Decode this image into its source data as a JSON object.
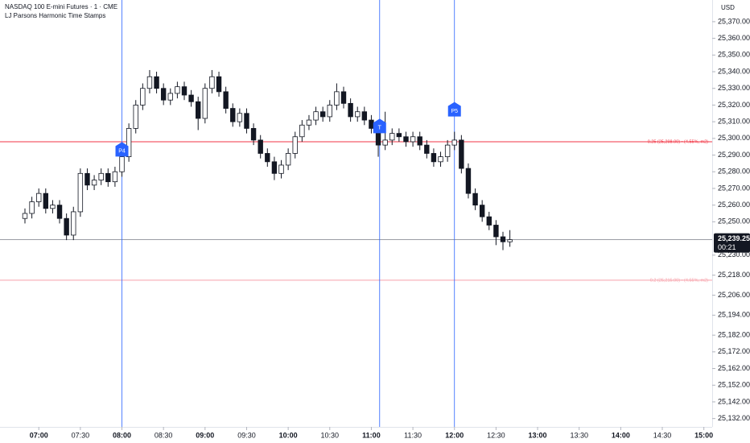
{
  "chart_data": {
    "type": "candlestick",
    "title": "NASDAQ 100 E-mini Futures · 1 · CME",
    "subtitle": "LJ Parsons Harmonic Time Stamps",
    "currency": "USD",
    "up_color": "#ffffff",
    "down_color": "#131722",
    "wick_color": "#131722",
    "x": [
      "06:50",
      "06:55",
      "07:00",
      "07:05",
      "07:10",
      "07:15",
      "07:20",
      "07:25",
      "07:30",
      "07:35",
      "07:40",
      "07:45",
      "07:50",
      "07:55",
      "08:00",
      "08:05",
      "08:10",
      "08:15",
      "08:20",
      "08:25",
      "08:30",
      "08:35",
      "08:40",
      "08:45",
      "08:50",
      "08:55",
      "09:00",
      "09:05",
      "09:10",
      "09:15",
      "09:20",
      "09:25",
      "09:30",
      "09:35",
      "09:40",
      "09:45",
      "09:50",
      "09:55",
      "10:00",
      "10:05",
      "10:10",
      "10:15",
      "10:20",
      "10:25",
      "10:30",
      "10:35",
      "10:40",
      "10:45",
      "10:50",
      "10:55",
      "11:00",
      "11:05",
      "11:10",
      "11:15",
      "11:20",
      "11:25",
      "11:30",
      "11:35",
      "11:40",
      "11:45",
      "11:50",
      "11:55",
      "12:00",
      "12:05",
      "12:10",
      "12:15",
      "12:20",
      "12:25",
      "12:30",
      "12:35",
      "12:40"
    ],
    "open": [
      25252,
      25255,
      25262,
      25267,
      25258,
      25260,
      25252,
      25242,
      25256,
      25279,
      25272,
      25275,
      25279,
      25274,
      25280,
      25289,
      25306,
      25320,
      25330,
      25337,
      25330,
      25323,
      25327,
      25331,
      25326,
      25322,
      25312,
      25330,
      25337,
      25328,
      25318,
      25310,
      25315,
      25306,
      25299,
      25291,
      25286,
      25279,
      25284,
      25291,
      25301,
      25308,
      25311,
      25316,
      25313,
      25320,
      25328,
      25321,
      25313,
      25316,
      25311,
      25306,
      25296,
      25299,
      25303,
      25301,
      25298,
      25301,
      25296,
      25291,
      25286,
      25289,
      25296,
      25299,
      25282,
      25267,
      25260,
      25253,
      25248,
      25241,
      25238
    ],
    "high": [
      25258,
      25265,
      25270,
      25270,
      25263,
      25263,
      25255,
      25259,
      25282,
      25282,
      25278,
      25282,
      25282,
      25283,
      25292,
      25309,
      25323,
      25333,
      25341,
      25340,
      25333,
      25330,
      25334,
      25334,
      25329,
      25325,
      25333,
      25341,
      25340,
      25331,
      25321,
      25318,
      25318,
      25309,
      25302,
      25294,
      25289,
      25287,
      25294,
      25304,
      25311,
      25314,
      25319,
      25319,
      25323,
      25333,
      25331,
      25324,
      25319,
      25319,
      25314,
      25309,
      25316,
      25306,
      25306,
      25304,
      25304,
      25304,
      25299,
      25294,
      25292,
      25299,
      25304,
      25302,
      25285,
      25270,
      25263,
      25256,
      25251,
      25244,
      25245
    ],
    "low": [
      25249,
      25252,
      25259,
      25255,
      25255,
      25249,
      25239,
      25239,
      25253,
      25269,
      25269,
      25272,
      25271,
      25271,
      25277,
      25286,
      25303,
      25317,
      25327,
      25327,
      25320,
      25320,
      25324,
      25323,
      25319,
      25305,
      25309,
      25327,
      25325,
      25315,
      25307,
      25307,
      25303,
      25296,
      25288,
      25283,
      25275,
      25276,
      25281,
      25288,
      25298,
      25305,
      25308,
      25310,
      25310,
      25317,
      25318,
      25310,
      25310,
      25308,
      25303,
      25289,
      25293,
      25296,
      25298,
      25295,
      25295,
      25293,
      25288,
      25283,
      25283,
      25286,
      25293,
      25279,
      25264,
      25257,
      25250,
      25245,
      25236,
      25233,
      25235
    ],
    "close": [
      25255,
      25262,
      25267,
      25258,
      25260,
      25252,
      25242,
      25256,
      25279,
      25272,
      25275,
      25279,
      25274,
      25280,
      25289,
      25306,
      25320,
      25330,
      25337,
      25330,
      25323,
      25327,
      25331,
      25326,
      25322,
      25312,
      25330,
      25337,
      25328,
      25318,
      25310,
      25315,
      25306,
      25299,
      25291,
      25286,
      25279,
      25284,
      25291,
      25301,
      25308,
      25311,
      25316,
      25313,
      25320,
      25328,
      25321,
      25313,
      25316,
      25311,
      25306,
      25296,
      25299,
      25303,
      25301,
      25298,
      25301,
      25296,
      25291,
      25286,
      25289,
      25296,
      25299,
      25282,
      25267,
      25260,
      25253,
      25248,
      25241,
      25238,
      25239.25
    ],
    "xlim": [
      "06:32",
      "15:06"
    ],
    "xticks": [
      "07:00",
      "07:30",
      "08:00",
      "08:30",
      "09:00",
      "09:30",
      "10:00",
      "10:30",
      "11:00",
      "11:30",
      "12:00",
      "12:30",
      "13:00",
      "13:30",
      "14:00",
      "14:30",
      "15:00"
    ],
    "ylim": [
      25127,
      25383
    ],
    "yticks": [
      {
        "value": 25370,
        "label": "25,370.00"
      },
      {
        "value": 25360,
        "label": "25,360.00"
      },
      {
        "value": 25350,
        "label": "25,350.00"
      },
      {
        "value": 25340,
        "label": "25,340.00"
      },
      {
        "value": 25330,
        "label": "25,330.00"
      },
      {
        "value": 25320,
        "label": "25,320.00"
      },
      {
        "value": 25310,
        "label": "25,310.00"
      },
      {
        "value": 25300,
        "label": "25,300.00"
      },
      {
        "value": 25290,
        "label": "25,290.00"
      },
      {
        "value": 25280,
        "label": "25,280.00"
      },
      {
        "value": 25270,
        "label": "25,270.00"
      },
      {
        "value": 25260,
        "label": "25,260.00"
      },
      {
        "value": 25250,
        "label": "25,250.00"
      },
      {
        "value": 25230,
        "label": "25,230.00"
      },
      {
        "value": 25218,
        "label": "25,218.00"
      },
      {
        "value": 25206,
        "label": "25,206.00"
      },
      {
        "value": 25194,
        "label": "25,194.00"
      },
      {
        "value": 25182,
        "label": "25,182.00"
      },
      {
        "value": 25172,
        "label": "25,172.00"
      },
      {
        "value": 25162,
        "label": "25,162.00"
      },
      {
        "value": 25152,
        "label": "25,152.00"
      },
      {
        "value": 25142,
        "label": "25,142.00"
      },
      {
        "value": 25132,
        "label": "25,132.00"
      }
    ],
    "levels": [
      {
        "value": 25298,
        "label": "0.25 (25,298.00) • (4.55%, m2)",
        "color": "#f23645"
      },
      {
        "value": 25215,
        "label": "0.2 (25,215.00) • (4.55%, m2)",
        "color": "#f7a1aa"
      }
    ],
    "markers": [
      {
        "label": "P4",
        "x": "08:00",
        "y": 25293,
        "color": "#2962ff"
      },
      {
        "label": "T",
        "x": "11:06",
        "y": 25307,
        "color": "#2962ff"
      },
      {
        "label": "P5",
        "x": "12:00",
        "y": 25317,
        "color": "#2962ff"
      }
    ],
    "last_price": {
      "value": 25239.25,
      "label": "25,239.25",
      "countdown": "00:21"
    }
  }
}
